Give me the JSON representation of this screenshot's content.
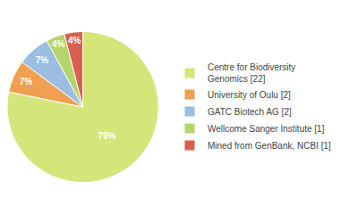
{
  "chart_data": {
    "type": "pie",
    "labels": [
      "Centre for Biodiversity\nGenomics [22]",
      "University of Oulu [2]",
      "GATC Biotech AG [2]",
      "Wellcome Sanger Institute [1]",
      "Mined from GenBank, NCBI [1]"
    ],
    "values": [
      79,
      7,
      7,
      4,
      4
    ],
    "value_labels": [
      "79%",
      "7%",
      "7%",
      "4%",
      "4%"
    ],
    "colors": [
      "#d4e67a",
      "#f0a050",
      "#9bbde0",
      "#b5d46a",
      "#d96050"
    ],
    "data_labels": true,
    "legend": "right"
  }
}
